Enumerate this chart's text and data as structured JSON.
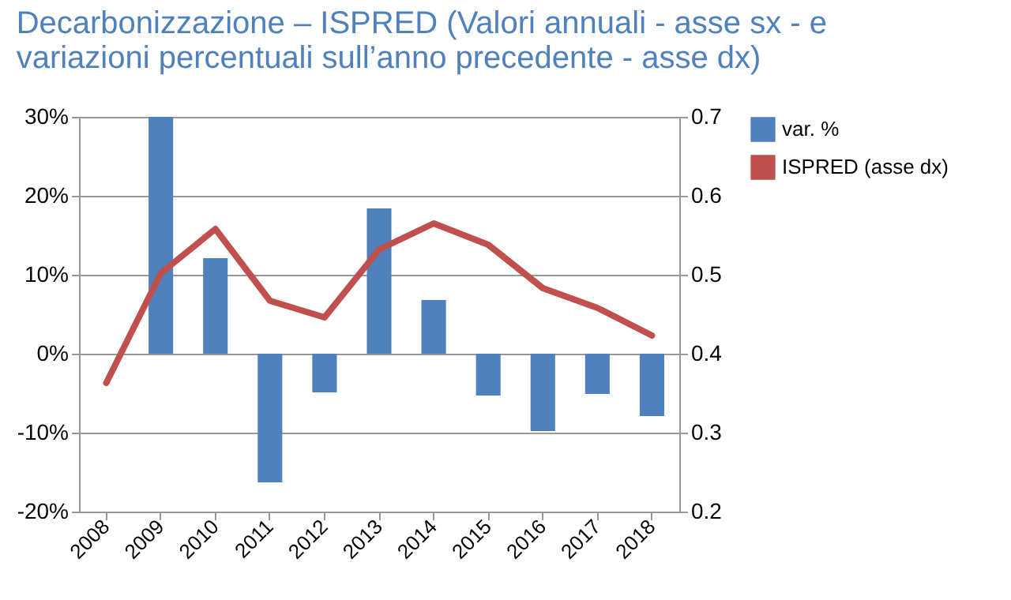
{
  "chart_data": {
    "type": "bar",
    "title": "Decarbonizzazione – ISPRED (Valori annuali - asse sx - e variazioni percentuali sull’anno precedente - asse dx)",
    "categories": [
      "2008",
      "2009",
      "2010",
      "2011",
      "2012",
      "2013",
      "2014",
      "2015",
      "2016",
      "2017",
      "2018"
    ],
    "series": [
      {
        "name": "var. %",
        "color": "#4f81bd",
        "values": [
          null,
          30,
          12.1,
          -16.3,
          -4.9,
          18.4,
          6.8,
          -5.3,
          -9.8,
          -5.1,
          -7.9
        ]
      },
      {
        "name": "ISPRED (asse dx)",
        "type": "line",
        "axis": "y2",
        "color": "#c0504d",
        "values": [
          0.363,
          0.502,
          0.558,
          0.467,
          0.446,
          0.532,
          0.565,
          0.538,
          0.483,
          0.458,
          0.423
        ]
      }
    ],
    "ylim": [
      -20,
      30
    ],
    "yticks": [
      {
        "value": -20,
        "label": "-20%"
      },
      {
        "value": -10,
        "label": "-10%"
      },
      {
        "value": 0,
        "label": "0%"
      },
      {
        "value": 10,
        "label": "10%"
      },
      {
        "value": 20,
        "label": "20%"
      },
      {
        "value": 30,
        "label": "30%"
      }
    ],
    "y2lim": [
      0.2,
      0.7
    ],
    "y2ticks": [
      0.2,
      0.3,
      0.4,
      0.5,
      0.6,
      0.7
    ],
    "grid": "y",
    "legend": "right"
  }
}
